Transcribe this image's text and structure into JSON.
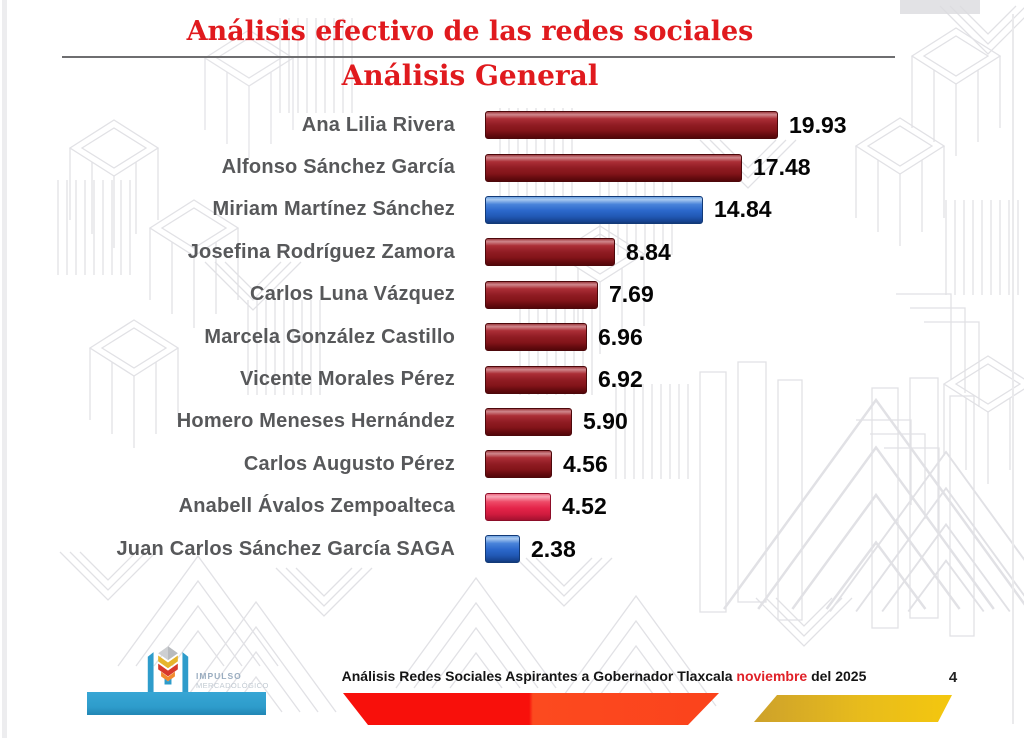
{
  "page": {
    "title": "Análisis efectivo de las redes sociales",
    "subtitle": "Análisis General",
    "title_color": "#E01A1E"
  },
  "chart_data": {
    "type": "bar",
    "orientation": "horizontal",
    "title": "Análisis efectivo de las redes sociales",
    "subtitle": "Análisis General",
    "xlim": [
      0,
      20.5
    ],
    "grid": false,
    "legend": "none",
    "value_labels_position": "end-of-bar",
    "categories": [
      "Ana Lilia Rivera",
      "Alfonso Sánchez García",
      "Miriam Martínez Sánchez",
      "Josefina Rodríguez Zamora",
      "Carlos Luna Vázquez",
      "Marcela González Castillo",
      "Vicente Morales Pérez",
      "Homero Meneses Hernández",
      "Carlos Augusto Pérez",
      "Anabell Ávalos Zempoalteca",
      "Juan Carlos Sánchez García SAGA"
    ],
    "values": [
      19.93,
      17.48,
      14.84,
      8.84,
      7.69,
      6.96,
      6.92,
      5.9,
      4.56,
      4.52,
      2.38
    ],
    "value_labels": [
      "19.93",
      "17.48",
      "14.84",
      "8.84",
      "7.69",
      "6.96",
      "6.92",
      "5.90",
      "4.56",
      "4.52",
      "2.38"
    ],
    "bar_color_keys": [
      "darkred",
      "darkred",
      "blue",
      "darkred",
      "darkred",
      "darkred",
      "darkred",
      "darkred",
      "darkred",
      "crimson",
      "blue"
    ],
    "colors": {
      "darkred": "#8C171E",
      "blue": "#2C68CB",
      "crimson": "#E42449"
    }
  },
  "footer": {
    "caption_part1": "Análisis Redes Sociales  Aspirantes a Gobernador Tlaxcala ",
    "caption_highlight": "noviembre",
    "caption_part2": "  del 2025",
    "page_number": "4",
    "logo": {
      "line1": "IMPULSO",
      "line2": "MERCADOLÓGICO"
    }
  }
}
